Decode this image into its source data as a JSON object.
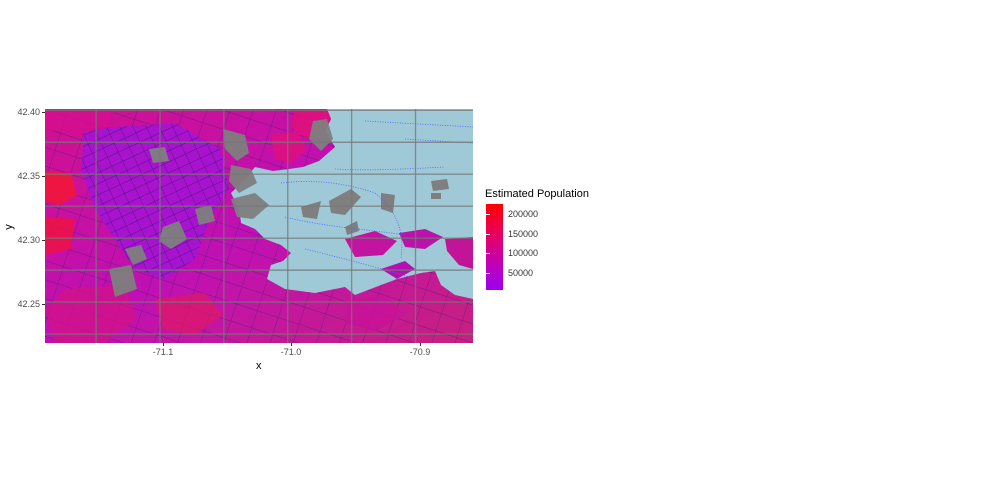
{
  "plot": {
    "x_axis_title": "x",
    "y_axis_title": "y",
    "x_ticks": [
      "-71.1",
      "-71.0",
      "-70.9"
    ],
    "y_ticks": [
      "42.40",
      "42.35",
      "42.30",
      "42.25"
    ]
  },
  "legend": {
    "title": "Estimated Population",
    "labels": [
      "200000",
      "150000",
      "100000",
      "50000"
    ],
    "colors": {
      "high": "#ff0000",
      "mid": "#d1009a",
      "low": "#9a00f0"
    }
  },
  "map": {
    "water_color": "#9fc9d7",
    "land_gray": "#7f7f7f",
    "boundary_color": "#5b2c86",
    "transit_color": "#4a63ff",
    "x_range": [
      -71.19,
      -70.855
    ],
    "y_range": [
      42.218,
      42.401
    ]
  }
}
